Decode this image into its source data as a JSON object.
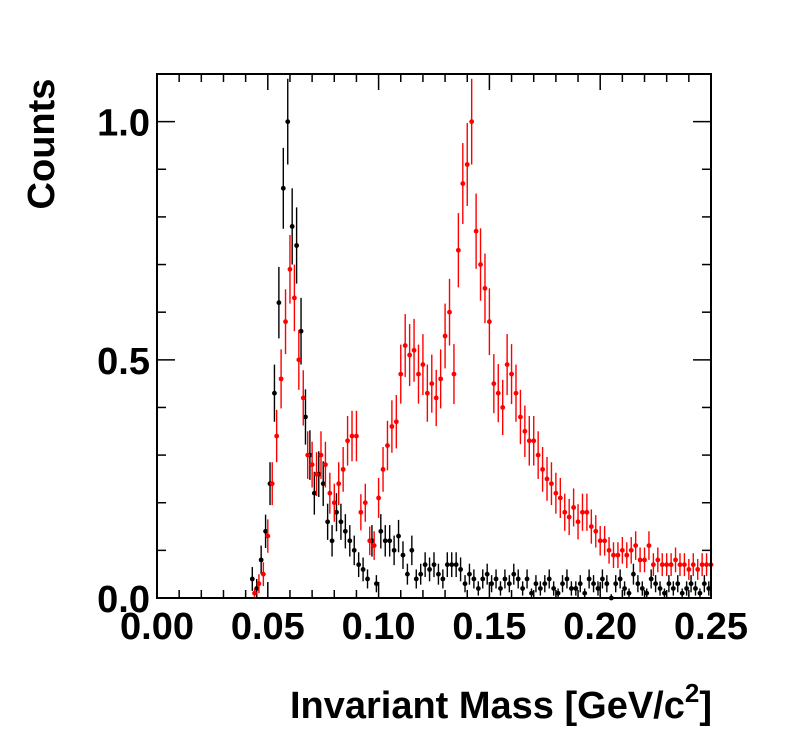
{
  "chart_data": {
    "type": "scatter",
    "title": "",
    "xlabel": "Invariant Mass [GeV/c",
    "xlabel_superscript": "2",
    "xlabel_suffix": "]",
    "ylabel": "Counts",
    "xlim": [
      0.0,
      0.25
    ],
    "ylim": [
      0.0,
      1.1
    ],
    "x_ticks": [
      0.0,
      0.05,
      0.1,
      0.15,
      0.2,
      0.25
    ],
    "x_tick_labels": [
      "0.00",
      "0.05",
      "0.10",
      "0.15",
      "0.20",
      "0.25"
    ],
    "y_ticks": [
      0.0,
      0.5,
      1.0
    ],
    "y_tick_labels": [
      "0.0",
      "0.5",
      "1.0"
    ],
    "grid": false,
    "series": [
      {
        "name": "black",
        "color": "#000000",
        "x": [
          0.043,
          0.045,
          0.047,
          0.049,
          0.051,
          0.053,
          0.055,
          0.057,
          0.059,
          0.061,
          0.063,
          0.065,
          0.067,
          0.069,
          0.071,
          0.073,
          0.075,
          0.077,
          0.079,
          0.081,
          0.083,
          0.085,
          0.087,
          0.089,
          0.091,
          0.093,
          0.095,
          0.097,
          0.099,
          0.101,
          0.103,
          0.105,
          0.107,
          0.109,
          0.111,
          0.113,
          0.115,
          0.117,
          0.119,
          0.121,
          0.123,
          0.125,
          0.127,
          0.129,
          0.131,
          0.133,
          0.135,
          0.137,
          0.139,
          0.141,
          0.143,
          0.145,
          0.147,
          0.149,
          0.151,
          0.153,
          0.155,
          0.157,
          0.159,
          0.161,
          0.163,
          0.165,
          0.167,
          0.169,
          0.171,
          0.173,
          0.175,
          0.177,
          0.179,
          0.181,
          0.183,
          0.185,
          0.187,
          0.189,
          0.191,
          0.193,
          0.195,
          0.197,
          0.199,
          0.201,
          0.203,
          0.205,
          0.207,
          0.209,
          0.211,
          0.213,
          0.215,
          0.217,
          0.219,
          0.221,
          0.223,
          0.225,
          0.227,
          0.229,
          0.231,
          0.233,
          0.235,
          0.237,
          0.239,
          0.241,
          0.243,
          0.245,
          0.247,
          0.249
        ],
        "y": [
          0.04,
          0.02,
          0.08,
          0.14,
          0.24,
          0.43,
          0.62,
          0.86,
          1.0,
          0.78,
          0.74,
          0.56,
          0.38,
          0.3,
          0.22,
          0.26,
          0.24,
          0.16,
          0.12,
          0.18,
          0.16,
          0.14,
          0.12,
          0.1,
          0.07,
          0.06,
          0.04,
          0.12,
          0.03,
          0.14,
          0.12,
          0.12,
          0.1,
          0.13,
          0.09,
          0.05,
          0.1,
          0.04,
          0.05,
          0.07,
          0.06,
          0.07,
          0.05,
          0.04,
          0.07,
          0.07,
          0.07,
          0.06,
          0.03,
          0.05,
          0.04,
          0.02,
          0.04,
          0.05,
          0.03,
          0.04,
          0.02,
          0.04,
          0.03,
          0.05,
          0.04,
          0.02,
          0.04,
          0.01,
          0.03,
          0.02,
          0.03,
          0.04,
          0.02,
          0.01,
          0.03,
          0.04,
          0.02,
          0.02,
          0.03,
          0.01,
          0.04,
          0.03,
          0.02,
          0.04,
          0.03,
          0.0,
          0.03,
          0.04,
          0.02,
          0.01,
          0.05,
          0.03,
          0.02,
          0.01,
          0.04,
          0.03,
          0.02,
          0.01,
          0.03,
          0.02,
          0.03,
          0.01,
          0.02,
          0.03,
          0.02,
          0.01,
          0.03,
          0.02
        ],
        "err": [
          0.025,
          0.02,
          0.03,
          0.035,
          0.045,
          0.06,
          0.075,
          0.085,
          0.09,
          0.08,
          0.08,
          0.07,
          0.058,
          0.052,
          0.045,
          0.048,
          0.047,
          0.038,
          0.033,
          0.04,
          0.038,
          0.036,
          0.033,
          0.031,
          0.026,
          0.025,
          0.02,
          0.033,
          0.018,
          0.036,
          0.033,
          0.033,
          0.031,
          0.034,
          0.029,
          0.022,
          0.031,
          0.02,
          0.022,
          0.026,
          0.025,
          0.026,
          0.022,
          0.02,
          0.026,
          0.026,
          0.026,
          0.025,
          0.018,
          0.022,
          0.02,
          0.015,
          0.02,
          0.022,
          0.018,
          0.02,
          0.015,
          0.02,
          0.018,
          0.022,
          0.02,
          0.015,
          0.02,
          0.01,
          0.018,
          0.015,
          0.018,
          0.02,
          0.015,
          0.01,
          0.018,
          0.02,
          0.015,
          0.015,
          0.018,
          0.01,
          0.02,
          0.018,
          0.015,
          0.02,
          0.018,
          0.008,
          0.018,
          0.02,
          0.015,
          0.01,
          0.022,
          0.018,
          0.015,
          0.01,
          0.02,
          0.018,
          0.015,
          0.01,
          0.018,
          0.015,
          0.018,
          0.01,
          0.015,
          0.018,
          0.015,
          0.01,
          0.018,
          0.015
        ]
      },
      {
        "name": "red",
        "color": "#ff0000",
        "x": [
          0.044,
          0.046,
          0.048,
          0.05,
          0.052,
          0.054,
          0.056,
          0.058,
          0.06,
          0.062,
          0.064,
          0.066,
          0.068,
          0.07,
          0.072,
          0.074,
          0.076,
          0.078,
          0.08,
          0.082,
          0.084,
          0.086,
          0.088,
          0.09,
          0.092,
          0.094,
          0.096,
          0.098,
          0.1,
          0.102,
          0.104,
          0.106,
          0.108,
          0.11,
          0.112,
          0.114,
          0.116,
          0.118,
          0.12,
          0.122,
          0.124,
          0.126,
          0.128,
          0.13,
          0.132,
          0.134,
          0.136,
          0.138,
          0.14,
          0.142,
          0.144,
          0.146,
          0.148,
          0.15,
          0.152,
          0.154,
          0.156,
          0.158,
          0.16,
          0.162,
          0.164,
          0.166,
          0.168,
          0.17,
          0.172,
          0.174,
          0.176,
          0.178,
          0.18,
          0.182,
          0.184,
          0.186,
          0.188,
          0.19,
          0.192,
          0.194,
          0.196,
          0.198,
          0.2,
          0.202,
          0.204,
          0.206,
          0.208,
          0.21,
          0.212,
          0.214,
          0.216,
          0.218,
          0.22,
          0.222,
          0.224,
          0.226,
          0.228,
          0.23,
          0.232,
          0.234,
          0.236,
          0.238,
          0.24,
          0.242,
          0.244,
          0.246,
          0.248,
          0.25
        ],
        "y": [
          0.01,
          0.03,
          0.05,
          0.13,
          0.24,
          0.34,
          0.46,
          0.58,
          0.69,
          0.63,
          0.5,
          0.42,
          0.3,
          0.28,
          0.26,
          0.3,
          0.28,
          0.22,
          0.2,
          0.24,
          0.27,
          0.33,
          0.34,
          0.34,
          0.18,
          0.2,
          0.12,
          0.11,
          0.21,
          0.27,
          0.32,
          0.36,
          0.37,
          0.47,
          0.53,
          0.51,
          0.52,
          0.47,
          0.49,
          0.43,
          0.45,
          0.42,
          0.46,
          0.55,
          0.6,
          0.47,
          0.73,
          0.87,
          0.91,
          1.0,
          0.77,
          0.7,
          0.65,
          0.58,
          0.45,
          0.43,
          0.4,
          0.49,
          0.47,
          0.43,
          0.38,
          0.35,
          0.33,
          0.33,
          0.3,
          0.27,
          0.25,
          0.24,
          0.22,
          0.21,
          0.18,
          0.17,
          0.19,
          0.16,
          0.18,
          0.18,
          0.15,
          0.14,
          0.12,
          0.12,
          0.1,
          0.09,
          0.09,
          0.1,
          0.09,
          0.1,
          0.11,
          0.08,
          0.08,
          0.11,
          0.07,
          0.08,
          0.07,
          0.07,
          0.07,
          0.08,
          0.07,
          0.07,
          0.06,
          0.07,
          0.06,
          0.07,
          0.07,
          0.07
        ],
        "err": [
          0.01,
          0.02,
          0.025,
          0.035,
          0.045,
          0.055,
          0.062,
          0.068,
          0.072,
          0.07,
          0.063,
          0.058,
          0.05,
          0.048,
          0.046,
          0.05,
          0.048,
          0.043,
          0.04,
          0.045,
          0.047,
          0.052,
          0.053,
          0.053,
          0.038,
          0.04,
          0.03,
          0.03,
          0.042,
          0.047,
          0.052,
          0.055,
          0.056,
          0.062,
          0.066,
          0.065,
          0.066,
          0.062,
          0.064,
          0.06,
          0.061,
          0.059,
          0.062,
          0.068,
          0.07,
          0.063,
          0.078,
          0.085,
          0.087,
          0.09,
          0.079,
          0.076,
          0.073,
          0.07,
          0.062,
          0.061,
          0.058,
          0.064,
          0.063,
          0.06,
          0.057,
          0.054,
          0.052,
          0.052,
          0.05,
          0.047,
          0.046,
          0.045,
          0.043,
          0.042,
          0.039,
          0.038,
          0.04,
          0.037,
          0.039,
          0.039,
          0.036,
          0.034,
          0.031,
          0.031,
          0.028,
          0.027,
          0.027,
          0.028,
          0.027,
          0.028,
          0.03,
          0.026,
          0.026,
          0.03,
          0.024,
          0.026,
          0.024,
          0.024,
          0.024,
          0.026,
          0.024,
          0.024,
          0.022,
          0.024,
          0.022,
          0.024,
          0.024,
          0.024
        ]
      }
    ]
  }
}
